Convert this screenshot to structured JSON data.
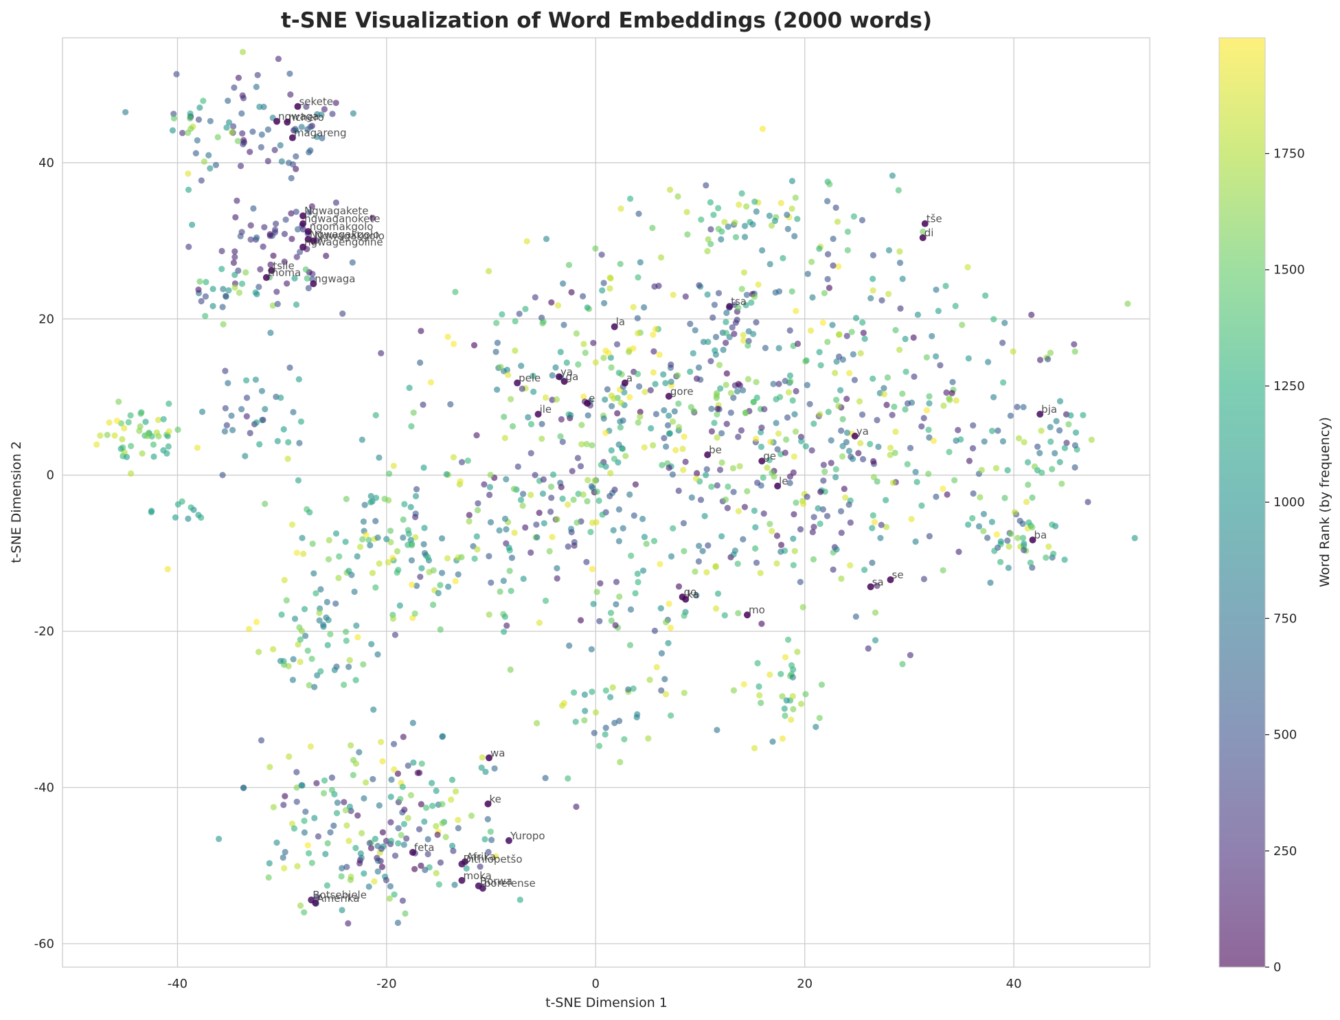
{
  "chart_data": {
    "type": "scatter",
    "title": "t-SNE Visualization of Word Embeddings (2000 words)",
    "xlabel": "t-SNE Dimension 1",
    "ylabel": "t-SNE Dimension 2",
    "xlim": [
      -51,
      53
    ],
    "ylim": [
      -63,
      56
    ],
    "xticks": [
      -40,
      -20,
      0,
      20,
      40
    ],
    "yticks": [
      -60,
      -40,
      -20,
      0,
      20,
      40
    ],
    "grid": true,
    "colormap": "viridis",
    "point_alpha": 0.6,
    "colorbar": {
      "label": "Word Rank (by frequency)",
      "range": [
        0,
        1999
      ],
      "ticks": [
        0,
        250,
        500,
        750,
        1000,
        1250,
        1500,
        1750
      ]
    },
    "labeled_points": [
      {
        "word": "sekete",
        "x": -28.5,
        "y": 47.2,
        "rank": 20
      },
      {
        "word": "ngwaga",
        "x": -30.5,
        "y": 45.3,
        "rank": 25
      },
      {
        "word": "nchero",
        "x": -29.5,
        "y": 45.2,
        "rank": 30
      },
      {
        "word": "magareng",
        "x": -29,
        "y": 43.2,
        "rank": 28
      },
      {
        "word": "Ngwagakete",
        "x": -28,
        "y": 33.2,
        "rank": 15
      },
      {
        "word": "ngwaganokete",
        "x": -28,
        "y": 32.2,
        "rank": 18
      },
      {
        "word": "ngomakgolo",
        "x": -27.5,
        "y": 31.2,
        "rank": 22
      },
      {
        "word": "Ngwagakgolo",
        "x": -27.5,
        "y": 30.2,
        "rank": 12
      },
      {
        "word": "Ngwagakgolo",
        "x": -27,
        "y": 30.0,
        "rank": 14
      },
      {
        "word": "ngwagengoline",
        "x": -28,
        "y": 29.2,
        "rank": 24
      },
      {
        "word": "tsile",
        "x": -31,
        "y": 26.2,
        "rank": 35
      },
      {
        "word": "thoma",
        "x": -31.5,
        "y": 25.3,
        "rank": 32
      },
      {
        "word": "ngwaga",
        "x": -27,
        "y": 24.5,
        "rank": 40
      },
      {
        "word": "tše",
        "x": 31.5,
        "y": 32.2,
        "rank": 8
      },
      {
        "word": "di",
        "x": 31.3,
        "y": 30.4,
        "rank": 10
      },
      {
        "word": "tsa",
        "x": 12.8,
        "y": 21.6,
        "rank": 45
      },
      {
        "word": "la",
        "x": 1.8,
        "y": 19.0,
        "rank": 50
      },
      {
        "word": "pele",
        "x": -7.5,
        "y": 11.8,
        "rank": 60
      },
      {
        "word": "ya",
        "x": -3.5,
        "y": 12.6,
        "rank": 5
      },
      {
        "word": "ga",
        "x": -3.0,
        "y": 12.0,
        "rank": 6
      },
      {
        "word": "a",
        "x": 2.8,
        "y": 11.8,
        "rank": 3
      },
      {
        "word": "gore",
        "x": 7.0,
        "y": 10.1,
        "rank": 38
      },
      {
        "word": "ile",
        "x": -5.5,
        "y": 7.8,
        "rank": 42
      },
      {
        "word": "e",
        "x": -0.8,
        "y": 9.2,
        "rank": 7
      },
      {
        "word": "bja",
        "x": 42.5,
        "y": 7.8,
        "rank": 55
      },
      {
        "word": "ya",
        "x": 24.8,
        "y": 5.0,
        "rank": 9
      },
      {
        "word": "be",
        "x": 10.7,
        "y": 2.6,
        "rank": 48
      },
      {
        "word": "ge",
        "x": 15.9,
        "y": 1.8,
        "rank": 33
      },
      {
        "word": "le",
        "x": 17.4,
        "y": -1.4,
        "rank": 11
      },
      {
        "word": "ba",
        "x": 41.8,
        "y": -8.3,
        "rank": 13
      },
      {
        "word": "se",
        "x": 28.2,
        "y": -13.4,
        "rank": 26
      },
      {
        "word": "sa",
        "x": 26.3,
        "y": -14.3,
        "rank": 29
      },
      {
        "word": "go",
        "x": 8.3,
        "y": -15.6,
        "rank": 4
      },
      {
        "word": "ka",
        "x": 8.6,
        "y": -15.9,
        "rank": 16
      },
      {
        "word": "mo",
        "x": 14.5,
        "y": -17.9,
        "rank": 17
      },
      {
        "word": "wa",
        "x": -10.2,
        "y": -36.2,
        "rank": 21
      },
      {
        "word": "ke",
        "x": -10.3,
        "y": -42.1,
        "rank": 19
      },
      {
        "word": "Yuropo",
        "x": -8.3,
        "y": -46.8,
        "rank": 70
      },
      {
        "word": "feta",
        "x": -17.5,
        "y": -48.3,
        "rank": 65
      },
      {
        "word": "Afrika",
        "x": -12.5,
        "y": -49.5,
        "rank": 58
      },
      {
        "word": "Dithlopetšo",
        "x": -12.8,
        "y": -49.8,
        "rank": 75
      },
      {
        "word": "moka",
        "x": -12.8,
        "y": -51.9,
        "rank": 62
      },
      {
        "word": "Borwa",
        "x": -11.2,
        "y": -52.6,
        "rank": 68
      },
      {
        "word": "borefense",
        "x": -10.8,
        "y": -52.9,
        "rank": 80
      },
      {
        "word": "Botsebjele",
        "x": -27.2,
        "y": -54.4,
        "rank": 85
      },
      {
        "word": "Amerika",
        "x": -26.8,
        "y": -54.8,
        "rank": 78
      }
    ]
  }
}
